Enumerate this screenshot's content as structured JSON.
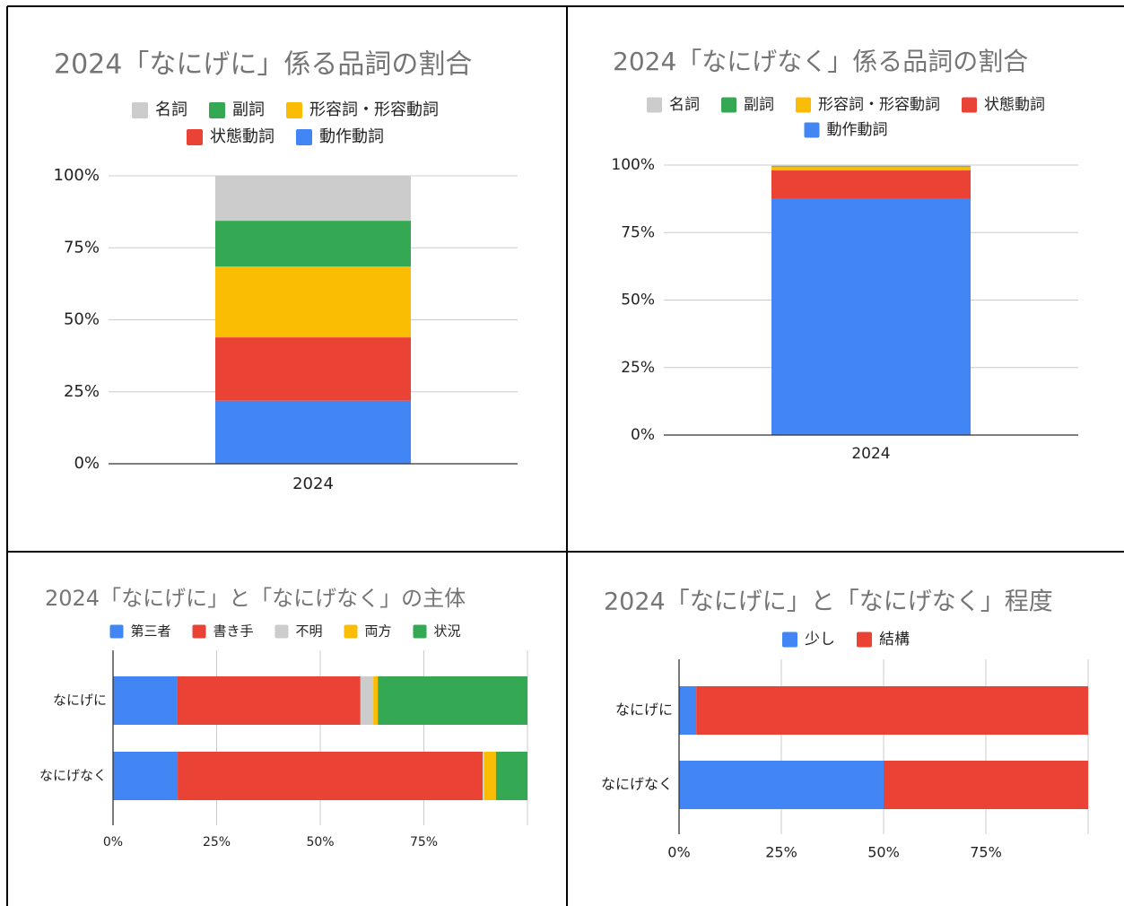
{
  "chart_data": [
    {
      "type": "stacked_column",
      "title": "2024「なにげに」係る品詞の割合",
      "categories": [
        "2024"
      ],
      "series": [
        {
          "name": "名詞",
          "color": "#cccccc",
          "values": [
            15.6
          ]
        },
        {
          "name": "副詞",
          "color": "#34a853",
          "values": [
            15.9
          ]
        },
        {
          "name": "形容詞・形容動詞",
          "color": "#fbbc04",
          "values": [
            24.6
          ]
        },
        {
          "name": "状態動詞",
          "color": "#ea4335",
          "values": [
            22.0
          ]
        },
        {
          "name": "動作動詞",
          "color": "#4285f4",
          "values": [
            21.9
          ]
        }
      ],
      "ylim": [
        0,
        100
      ],
      "yticks": [
        {
          "value": 0,
          "label": "0%"
        },
        {
          "value": 25,
          "label": "25%"
        },
        {
          "value": 50,
          "label": "50%"
        },
        {
          "value": 75,
          "label": "75%"
        },
        {
          "value": 100,
          "label": "100%"
        }
      ],
      "grid": true
    },
    {
      "type": "stacked_column",
      "title": "2024「なにげなく」係る品詞の割合",
      "categories": [
        "2024"
      ],
      "series": [
        {
          "name": "名詞",
          "color": "#cccccc",
          "values": [
            0.4
          ]
        },
        {
          "name": "副詞",
          "color": "#34a853",
          "values": [
            0.3
          ]
        },
        {
          "name": "形容詞・形容動詞",
          "color": "#fbbc04",
          "values": [
            1.3
          ]
        },
        {
          "name": "状態動詞",
          "color": "#ea4335",
          "values": [
            10.6
          ]
        },
        {
          "name": "動作動詞",
          "color": "#4285f4",
          "values": [
            87.4
          ]
        }
      ],
      "ylim": [
        0,
        100
      ],
      "yticks": [
        {
          "value": 0,
          "label": "0%"
        },
        {
          "value": 25,
          "label": "25%"
        },
        {
          "value": 50,
          "label": "50%"
        },
        {
          "value": 75,
          "label": "75%"
        },
        {
          "value": 100,
          "label": "100%"
        }
      ],
      "grid": true
    },
    {
      "type": "stacked_bar",
      "title": "2024「なにげに」と「なにげなく」の主体",
      "categories": [
        "なにげに",
        "なにげなく"
      ],
      "series": [
        {
          "name": "第三者",
          "color": "#4285f4",
          "values": [
            15.4,
            15.6
          ]
        },
        {
          "name": "書き手",
          "color": "#ea4335",
          "values": [
            44.3,
            73.6
          ]
        },
        {
          "name": "不明",
          "color": "#cccccc",
          "values": [
            3.1,
            0.4
          ]
        },
        {
          "name": "両方",
          "color": "#fbbc04",
          "values": [
            1.1,
            2.8
          ]
        },
        {
          "name": "状況",
          "color": "#34a853",
          "values": [
            36.1,
            7.6
          ]
        }
      ],
      "xlim": [
        0,
        100
      ],
      "xticks": [
        {
          "value": 0,
          "label": "0%"
        },
        {
          "value": 25,
          "label": "25%"
        },
        {
          "value": 50,
          "label": "50%"
        },
        {
          "value": 75,
          "label": "75%"
        }
      ],
      "grid": true
    },
    {
      "type": "stacked_bar",
      "title": "2024「なにげに」と「なにげなく」程度",
      "categories": [
        "なにげに",
        "なにげなく"
      ],
      "series": [
        {
          "name": "少し",
          "color": "#4285f4",
          "values": [
            4.2,
            50
          ]
        },
        {
          "name": "結構",
          "color": "#ea4335",
          "values": [
            95.8,
            50
          ]
        }
      ],
      "xlim": [
        0,
        100
      ],
      "xticks": [
        {
          "value": 0,
          "label": "0%"
        },
        {
          "value": 25,
          "label": "25%"
        },
        {
          "value": 50,
          "label": "50%"
        },
        {
          "value": 75,
          "label": "75%"
        }
      ],
      "grid": true
    }
  ]
}
